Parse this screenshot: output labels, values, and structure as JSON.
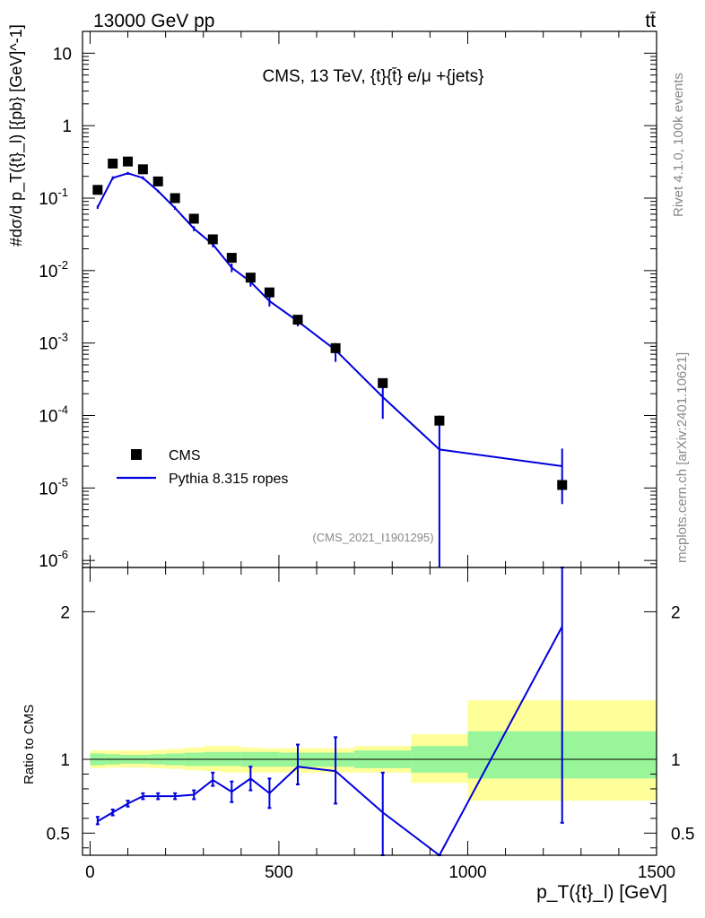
{
  "header": {
    "left": "13000 GeV pp",
    "right": "tt̄"
  },
  "side": {
    "rivet": "Rivet 4.1.0,  100k events",
    "mcplots": "mcplots.cern.ch [arXiv:2401.10621]"
  },
  "chart_data": [
    {
      "type": "scatter",
      "panel": "main",
      "title": "CMS, 13 TeV, {t}{t̄} e/μ +{jets}",
      "watermark": "(CMS_2021_I1901295)",
      "ylabel": "#dσ/d p_T({t}_l) [{pb} [GeV]^-1]",
      "yscale": "log",
      "ylim": [
        8e-07,
        20
      ],
      "xlim": [
        -20,
        1500
      ],
      "y_tick_labels": [
        "10",
        "1",
        "10^-1",
        "10^-2",
        "10^-3",
        "10^-4",
        "10^-5",
        "10^-6"
      ],
      "legend": {
        "position": "bottom-left",
        "entries": [
          "CMS",
          "Pythia 8.315 ropes"
        ]
      },
      "series": [
        {
          "name": "CMS",
          "style": "markers",
          "color": "#000000",
          "x": [
            20,
            60,
            100,
            140,
            180,
            225,
            275,
            325,
            375,
            425,
            475,
            550,
            650,
            775,
            925,
            1250
          ],
          "y": [
            0.13,
            0.3,
            0.32,
            0.25,
            0.17,
            0.1,
            0.052,
            0.027,
            0.015,
            0.008,
            0.005,
            0.0021,
            0.00085,
            0.00028,
            8.5e-05,
            1.1e-05
          ]
        },
        {
          "name": "Pythia 8.315 ropes",
          "style": "line",
          "color": "#0000dd",
          "x": [
            20,
            60,
            100,
            140,
            180,
            225,
            275,
            325,
            375,
            425,
            475,
            550,
            650,
            775,
            925,
            1250
          ],
          "y": [
            0.075,
            0.19,
            0.22,
            0.19,
            0.125,
            0.073,
            0.038,
            0.023,
            0.011,
            0.007,
            0.0038,
            0.002,
            0.0008,
            0.00018,
            3.4e-05,
            2e-05
          ],
          "err_lo": [
            0.071,
            0.18,
            0.21,
            0.18,
            0.12,
            0.069,
            0.035,
            0.021,
            0.0095,
            0.006,
            0.0032,
            0.0017,
            0.00055,
            9e-05,
            5e-07,
            6e-06
          ],
          "err_hi": [
            0.079,
            0.2,
            0.23,
            0.2,
            0.13,
            0.077,
            0.041,
            0.025,
            0.0125,
            0.008,
            0.0045,
            0.0023,
            0.001,
            0.00025,
            0.0001,
            3.5e-05
          ]
        }
      ]
    },
    {
      "type": "line",
      "panel": "ratio",
      "ylabel": "Ratio to CMS",
      "xlabel": "p_T({t}_l) [GeV]",
      "xlim": [
        -20,
        1500
      ],
      "ylim": [
        0.35,
        2.3
      ],
      "x_ticks": [
        0,
        500,
        1000,
        1500
      ],
      "y_ticks": [
        0.5,
        1,
        2
      ],
      "bands": {
        "edges": [
          0,
          40,
          80,
          120,
          160,
          200,
          250,
          300,
          350,
          400,
          450,
          500,
          600,
          700,
          850,
          1000,
          1500
        ],
        "inner_lo": [
          0.96,
          0.965,
          0.97,
          0.97,
          0.965,
          0.96,
          0.955,
          0.955,
          0.955,
          0.95,
          0.95,
          0.95,
          0.95,
          0.94,
          0.91,
          0.87
        ],
        "inner_hi": [
          1.04,
          1.035,
          1.03,
          1.03,
          1.035,
          1.04,
          1.045,
          1.05,
          1.05,
          1.05,
          1.05,
          1.045,
          1.045,
          1.06,
          1.09,
          1.19
        ],
        "outer_lo": [
          0.94,
          0.945,
          0.945,
          0.945,
          0.94,
          0.935,
          0.925,
          0.92,
          0.91,
          0.91,
          0.91,
          0.91,
          0.91,
          0.91,
          0.84,
          0.72
        ],
        "outer_hi": [
          1.06,
          1.06,
          1.06,
          1.06,
          1.065,
          1.07,
          1.08,
          1.09,
          1.09,
          1.08,
          1.075,
          1.075,
          1.075,
          1.09,
          1.17,
          1.4
        ]
      },
      "series": [
        {
          "name": "Pythia 8.315 ropes / CMS",
          "color": "#0000dd",
          "x": [
            20,
            60,
            100,
            140,
            180,
            225,
            275,
            325,
            375,
            425,
            475,
            550,
            650,
            775,
            925,
            1250
          ],
          "y": [
            0.58,
            0.64,
            0.7,
            0.75,
            0.75,
            0.75,
            0.76,
            0.86,
            0.78,
            0.87,
            0.77,
            0.95,
            0.92,
            0.64,
            0.33,
            1.9
          ],
          "err_lo": [
            0.56,
            0.62,
            0.68,
            0.73,
            0.73,
            0.73,
            0.73,
            0.82,
            0.71,
            0.79,
            0.67,
            0.83,
            0.7,
            0.3,
            0.3,
            0.57
          ],
          "err_hi": [
            0.61,
            0.66,
            0.72,
            0.77,
            0.77,
            0.77,
            0.79,
            0.91,
            0.85,
            0.95,
            0.87,
            1.1,
            1.15,
            0.91,
            0.35,
            2.3
          ]
        }
      ]
    }
  ]
}
